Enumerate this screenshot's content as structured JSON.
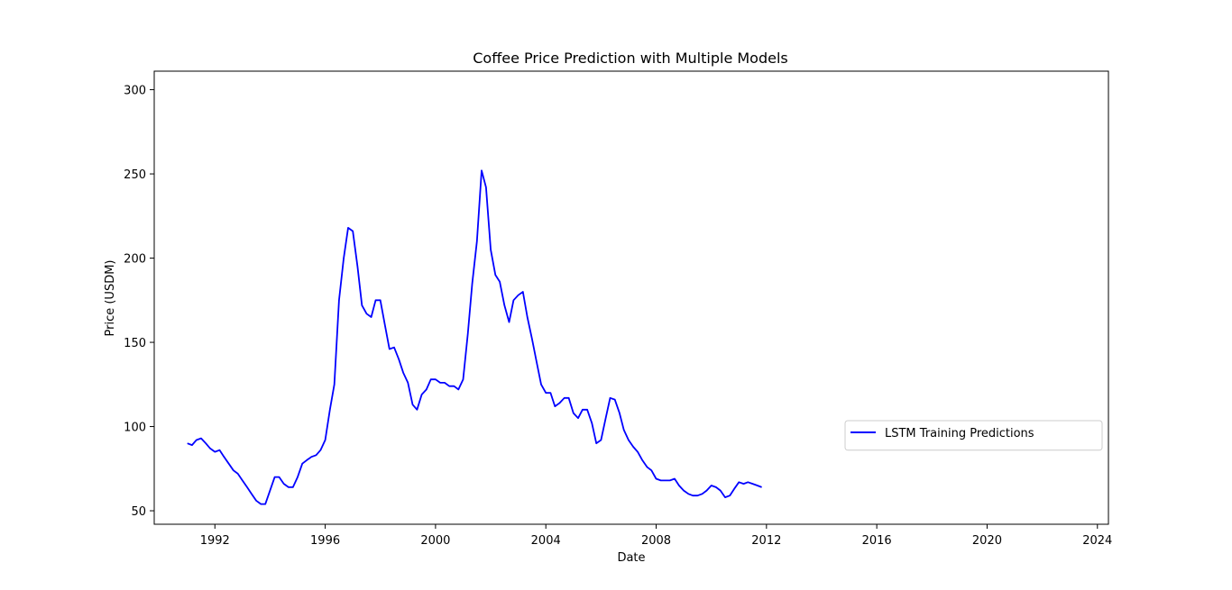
{
  "chart_data": {
    "type": "line",
    "title": "Coffee Price Prediction with Multiple Models",
    "xlabel": "Date",
    "ylabel": "Price (USDM)",
    "xlim": [
      1989.8,
      2024.4
    ],
    "ylim": [
      42,
      311
    ],
    "x_ticks": [
      1992,
      1996,
      2000,
      2004,
      2008,
      2012,
      2016,
      2020,
      2024
    ],
    "y_ticks": [
      50,
      100,
      150,
      200,
      250,
      300
    ],
    "grid": false,
    "legend_position": "lower-right",
    "series": [
      {
        "name": "LSTM Training Predictions",
        "color": "#0000ff",
        "style": "solid",
        "points": [
          [
            1991.0,
            90
          ],
          [
            1991.17,
            89
          ],
          [
            1991.33,
            92
          ],
          [
            1991.5,
            93
          ],
          [
            1991.67,
            90
          ],
          [
            1991.83,
            87
          ],
          [
            1992.0,
            85
          ],
          [
            1992.17,
            86
          ],
          [
            1992.33,
            82
          ],
          [
            1992.5,
            78
          ],
          [
            1992.67,
            74
          ],
          [
            1992.83,
            72
          ],
          [
            1993.0,
            68
          ],
          [
            1993.17,
            64
          ],
          [
            1993.33,
            60
          ],
          [
            1993.5,
            56
          ],
          [
            1993.67,
            54
          ],
          [
            1993.83,
            54
          ],
          [
            1994.0,
            62
          ],
          [
            1994.17,
            70
          ],
          [
            1994.33,
            70
          ],
          [
            1994.5,
            66
          ],
          [
            1994.67,
            64
          ],
          [
            1994.83,
            64
          ],
          [
            1995.0,
            70
          ],
          [
            1995.17,
            78
          ],
          [
            1995.33,
            80
          ],
          [
            1995.5,
            82
          ],
          [
            1995.67,
            83
          ],
          [
            1995.83,
            86
          ],
          [
            1996.0,
            92
          ],
          [
            1996.17,
            110
          ],
          [
            1996.33,
            125
          ],
          [
            1996.5,
            175
          ],
          [
            1996.67,
            200
          ],
          [
            1996.83,
            218
          ],
          [
            1997.0,
            216
          ],
          [
            1997.17,
            195
          ],
          [
            1997.33,
            172
          ],
          [
            1997.5,
            167
          ],
          [
            1997.67,
            165
          ],
          [
            1997.83,
            175
          ],
          [
            1998.0,
            175
          ],
          [
            1998.17,
            160
          ],
          [
            1998.33,
            146
          ],
          [
            1998.5,
            147
          ],
          [
            1998.67,
            140
          ],
          [
            1998.83,
            132
          ],
          [
            1999.0,
            126
          ],
          [
            1999.17,
            113
          ],
          [
            1999.33,
            110
          ],
          [
            1999.5,
            119
          ],
          [
            1999.67,
            122
          ],
          [
            1999.83,
            128
          ],
          [
            2000.0,
            128
          ],
          [
            2000.17,
            126
          ],
          [
            2000.33,
            126
          ],
          [
            2000.5,
            124
          ],
          [
            2000.67,
            124
          ],
          [
            2000.83,
            122
          ],
          [
            2001.0,
            128
          ],
          [
            2001.17,
            155
          ],
          [
            2001.33,
            185
          ],
          [
            2001.5,
            210
          ],
          [
            2001.67,
            252
          ],
          [
            2001.83,
            242
          ],
          [
            2002.0,
            205
          ],
          [
            2002.17,
            190
          ],
          [
            2002.33,
            186
          ],
          [
            2002.5,
            172
          ],
          [
            2002.67,
            162
          ],
          [
            2002.83,
            175
          ],
          [
            2003.0,
            178
          ],
          [
            2003.17,
            180
          ],
          [
            2003.33,
            165
          ],
          [
            2003.5,
            152
          ],
          [
            2003.67,
            138
          ],
          [
            2003.83,
            125
          ],
          [
            2004.0,
            120
          ],
          [
            2004.17,
            120
          ],
          [
            2004.33,
            112
          ],
          [
            2004.5,
            114
          ],
          [
            2004.67,
            117
          ],
          [
            2004.83,
            117
          ],
          [
            2005.0,
            108
          ],
          [
            2005.17,
            105
          ],
          [
            2005.33,
            110
          ],
          [
            2005.5,
            110
          ],
          [
            2005.67,
            102
          ],
          [
            2005.83,
            90
          ],
          [
            2006.0,
            92
          ],
          [
            2006.17,
            105
          ],
          [
            2006.33,
            117
          ],
          [
            2006.5,
            116
          ],
          [
            2006.67,
            108
          ],
          [
            2006.83,
            98
          ],
          [
            2007.0,
            92
          ],
          [
            2007.17,
            88
          ],
          [
            2007.33,
            85
          ],
          [
            2007.5,
            80
          ],
          [
            2007.67,
            76
          ],
          [
            2007.83,
            74
          ],
          [
            2008.0,
            69
          ],
          [
            2008.17,
            68
          ],
          [
            2008.33,
            68
          ],
          [
            2008.5,
            68
          ],
          [
            2008.67,
            69
          ],
          [
            2008.83,
            65
          ],
          [
            2009.0,
            62
          ],
          [
            2009.17,
            60
          ],
          [
            2009.33,
            59
          ],
          [
            2009.5,
            59
          ],
          [
            2009.67,
            60
          ],
          [
            2009.83,
            62
          ],
          [
            2010.0,
            65
          ],
          [
            2010.17,
            64
          ],
          [
            2010.33,
            62
          ],
          [
            2010.5,
            58
          ],
          [
            2010.67,
            59
          ],
          [
            2010.83,
            63
          ],
          [
            2011.0,
            67
          ],
          [
            2011.17,
            66
          ],
          [
            2011.33,
            67
          ],
          [
            2011.5,
            66
          ],
          [
            2011.67,
            65
          ],
          [
            2011.83,
            64
          ]
        ]
      }
    ]
  }
}
